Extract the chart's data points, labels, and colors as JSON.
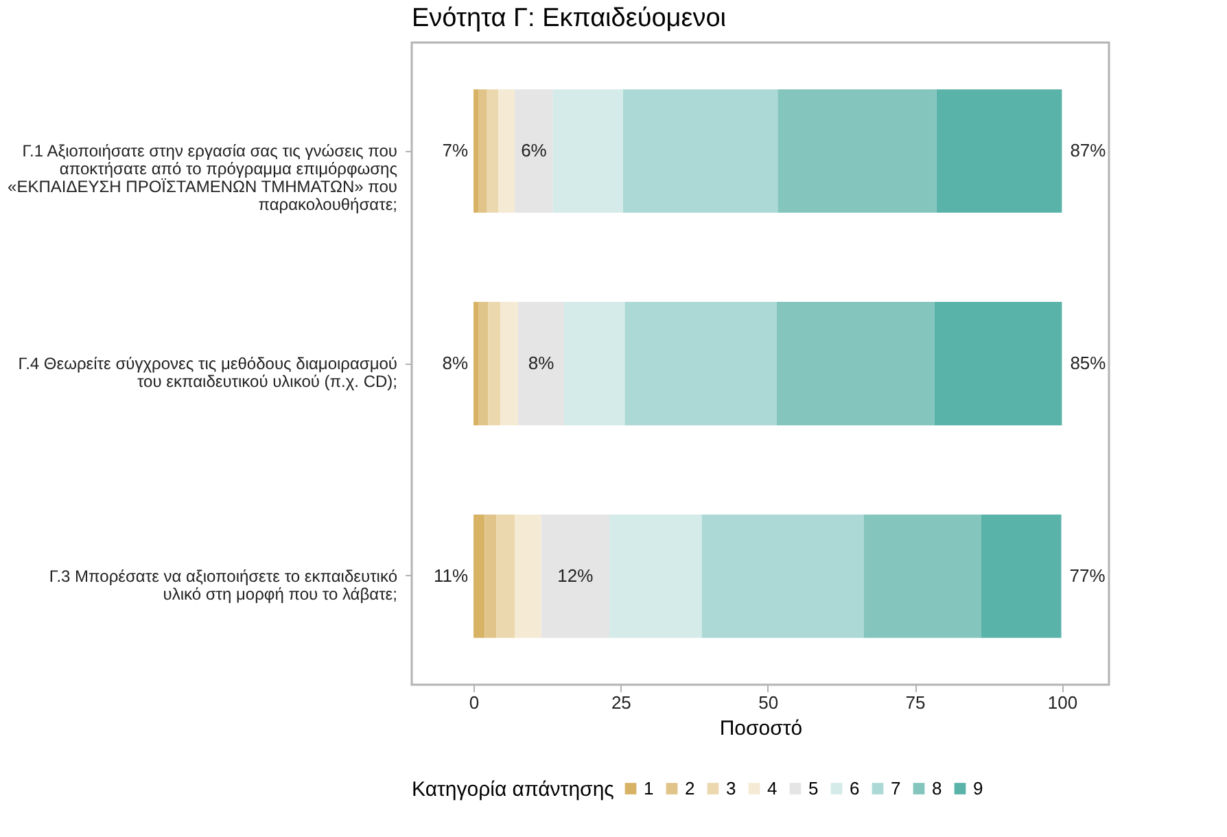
{
  "chart_data": {
    "type": "bar",
    "orientation": "horizontal",
    "stacked": true,
    "title": "Ενότητα Γ: Εκπαιδεύομενοι",
    "xlabel": "Ποσοστό",
    "legend_title": "Κατηγορία απάντησης",
    "legend": "bottom",
    "categories": [
      "Γ.1 Αξιοποιήσατε στην εργασία σας τις γνώσεις που αποκτήσατε από το πρόγραμμα επιμόρφωσης «ΕΚΠΑΙΔΕΥΣΗ ΠΡΟΪΣΤΑΜΕΝΩΝ ΤΜΗΜΑΤΩΝ» που παρακολουθήσατε;",
      "Γ.4 Θεωρείτε σύγχρονες τις μεθόδους διαμοιρασμού του εκπαιδευτικού υλικού (π.χ. CD);",
      "Γ.3 Μπορέσατε να αξιοποιήσετε το εκπαιδευτικό υλικό στη μορφή που το λάβατε;"
    ],
    "series": [
      {
        "name": "1",
        "color": "#d8b365",
        "values": [
          0.9,
          0.9,
          1.9
        ]
      },
      {
        "name": "2",
        "color": "#e0c48a",
        "values": [
          1.4,
          1.6,
          2.0
        ]
      },
      {
        "name": "3",
        "color": "#ebd8ae",
        "values": [
          1.9,
          2.1,
          3.1
        ]
      },
      {
        "name": "4",
        "color": "#f5ebd5",
        "values": [
          2.8,
          3.0,
          4.5
        ]
      },
      {
        "name": "5",
        "color": "#e5e5e5",
        "values": [
          6.5,
          7.8,
          11.6
        ]
      },
      {
        "name": "6",
        "color": "#d5ebe9",
        "values": [
          11.9,
          10.3,
          15.7
        ]
      },
      {
        "name": "7",
        "color": "#acd9d5",
        "values": [
          26.3,
          25.8,
          27.5
        ]
      },
      {
        "name": "8",
        "color": "#84c5bd",
        "values": [
          27.0,
          26.8,
          20.0
        ]
      },
      {
        "name": "9",
        "color": "#5ab3a9",
        "values": [
          21.3,
          21.7,
          13.6
        ]
      }
    ],
    "xlim": [
      -10.5,
      108
    ],
    "xticks": [
      0,
      25,
      50,
      75,
      100
    ],
    "annotations": [
      "7%",
      "6%",
      "87%",
      "8%",
      "8%",
      "85%",
      "11%",
      "12%",
      "77%"
    ]
  }
}
